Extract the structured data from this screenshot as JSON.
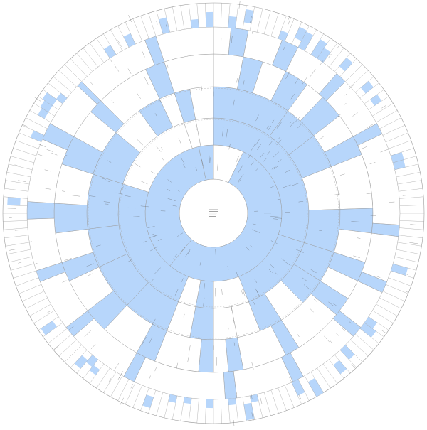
{
  "header": {
    "line1": "",
    "line2": ""
  },
  "center": {
    "title": "",
    "subtitle": ""
  },
  "colors": {
    "filled": "#b7d6fb",
    "empty": "#ffffff",
    "stroke": "#9a9a9a",
    "dashed": "#a8a8a8",
    "text": "#222222"
  },
  "rings": {
    "note": "",
    "level1": [
      {
        "start": 0,
        "end": 0.072,
        "filled": false
      },
      {
        "start": 0.072,
        "end": 0.61,
        "filled": true
      },
      {
        "start": 0.61,
        "end": 0.965,
        "filled": true
      },
      {
        "start": 0.965,
        "end": 1.0,
        "filled": true
      }
    ],
    "level2": [
      {
        "start": 0.0,
        "end": 0.3,
        "filled": true
      },
      {
        "start": 0.3,
        "end": 0.44,
        "filled": true
      },
      {
        "start": 0.44,
        "end": 0.5,
        "filled": false
      },
      {
        "start": 0.5,
        "end": 0.53,
        "filled": true
      },
      {
        "start": 0.53,
        "end": 0.56,
        "filled": false
      },
      {
        "start": 0.56,
        "end": 0.8,
        "filled": true
      },
      {
        "start": 0.8,
        "end": 0.95,
        "filled": false
      },
      {
        "start": 0.95,
        "end": 0.97,
        "filled": false
      },
      {
        "start": 0.97,
        "end": 1.0,
        "filled": false
      }
    ],
    "level3": [
      {
        "start": 0.0,
        "end": 0.1,
        "filled": true
      },
      {
        "start": 0.1,
        "end": 0.145,
        "filled": true
      },
      {
        "start": 0.145,
        "end": 0.19,
        "filled": true
      },
      {
        "start": 0.19,
        "end": 0.245,
        "filled": false
      },
      {
        "start": 0.245,
        "end": 0.3,
        "filled": true
      },
      {
        "start": 0.3,
        "end": 0.34,
        "filled": true
      },
      {
        "start": 0.34,
        "end": 0.375,
        "filled": true
      },
      {
        "start": 0.375,
        "end": 0.41,
        "filled": false
      },
      {
        "start": 0.41,
        "end": 0.44,
        "filled": true
      },
      {
        "start": 0.44,
        "end": 0.47,
        "filled": false
      },
      {
        "start": 0.47,
        "end": 0.5,
        "filled": false
      },
      {
        "start": 0.5,
        "end": 0.53,
        "filled": true
      },
      {
        "start": 0.53,
        "end": 0.56,
        "filled": false
      },
      {
        "start": 0.56,
        "end": 0.62,
        "filled": true
      },
      {
        "start": 0.62,
        "end": 0.68,
        "filled": true
      },
      {
        "start": 0.68,
        "end": 0.73,
        "filled": true
      },
      {
        "start": 0.73,
        "end": 0.8,
        "filled": true
      },
      {
        "start": 0.8,
        "end": 0.86,
        "filled": true
      },
      {
        "start": 0.86,
        "end": 0.9,
        "filled": false
      },
      {
        "start": 0.9,
        "end": 0.93,
        "filled": true
      },
      {
        "start": 0.93,
        "end": 0.95,
        "filled": false
      },
      {
        "start": 0.95,
        "end": 0.97,
        "filled": true
      },
      {
        "start": 0.97,
        "end": 1.0,
        "filled": false
      }
    ],
    "level4": [
      {
        "start": 0.0,
        "end": 0.03,
        "filled": false
      },
      {
        "start": 0.03,
        "end": 0.05,
        "filled": true
      },
      {
        "start": 0.05,
        "end": 0.075,
        "filled": false
      },
      {
        "start": 0.075,
        "end": 0.1,
        "filled": true
      },
      {
        "start": 0.1,
        "end": 0.12,
        "filled": false
      },
      {
        "start": 0.12,
        "end": 0.145,
        "filled": true
      },
      {
        "start": 0.145,
        "end": 0.17,
        "filled": false
      },
      {
        "start": 0.17,
        "end": 0.19,
        "filled": true
      },
      {
        "start": 0.19,
        "end": 0.245,
        "filled": false
      },
      {
        "start": 0.245,
        "end": 0.27,
        "filled": true
      },
      {
        "start": 0.27,
        "end": 0.3,
        "filled": false
      },
      {
        "start": 0.3,
        "end": 0.32,
        "filled": true
      },
      {
        "start": 0.32,
        "end": 0.34,
        "filled": false
      },
      {
        "start": 0.34,
        "end": 0.36,
        "filled": true
      },
      {
        "start": 0.36,
        "end": 0.41,
        "filled": false
      },
      {
        "start": 0.41,
        "end": 0.425,
        "filled": true
      },
      {
        "start": 0.425,
        "end": 0.47,
        "filled": false
      },
      {
        "start": 0.47,
        "end": 0.485,
        "filled": true
      },
      {
        "start": 0.485,
        "end": 0.5,
        "filled": false
      },
      {
        "start": 0.5,
        "end": 0.515,
        "filled": true
      },
      {
        "start": 0.515,
        "end": 0.56,
        "filled": false
      },
      {
        "start": 0.56,
        "end": 0.58,
        "filled": true
      },
      {
        "start": 0.58,
        "end": 0.62,
        "filled": false
      },
      {
        "start": 0.62,
        "end": 0.645,
        "filled": true
      },
      {
        "start": 0.645,
        "end": 0.68,
        "filled": false
      },
      {
        "start": 0.68,
        "end": 0.7,
        "filled": true
      },
      {
        "start": 0.7,
        "end": 0.73,
        "filled": false
      },
      {
        "start": 0.73,
        "end": 0.76,
        "filled": true
      },
      {
        "start": 0.76,
        "end": 0.8,
        "filled": false
      },
      {
        "start": 0.8,
        "end": 0.83,
        "filled": true
      },
      {
        "start": 0.83,
        "end": 0.86,
        "filled": false
      },
      {
        "start": 0.86,
        "end": 0.875,
        "filled": true
      },
      {
        "start": 0.875,
        "end": 0.93,
        "filled": false
      },
      {
        "start": 0.93,
        "end": 0.95,
        "filled": true
      },
      {
        "start": 0.95,
        "end": 1.0,
        "filled": false
      }
    ],
    "level5": [
      {
        "start": 0.0,
        "end": 0.015,
        "filled": false
      },
      {
        "start": 0.015,
        "end": 0.03,
        "filled": true
      },
      {
        "start": 0.03,
        "end": 0.06,
        "filled": false
      },
      {
        "start": 0.06,
        "end": 0.075,
        "filled": true
      },
      {
        "start": 0.075,
        "end": 0.115,
        "filled": false
      },
      {
        "start": 0.115,
        "end": 0.125,
        "filled": true
      },
      {
        "start": 0.125,
        "end": 0.17,
        "filled": false
      },
      {
        "start": 0.17,
        "end": 0.18,
        "filled": true
      },
      {
        "start": 0.18,
        "end": 0.26,
        "filled": false
      },
      {
        "start": 0.26,
        "end": 0.27,
        "filled": true
      },
      {
        "start": 0.27,
        "end": 0.31,
        "filled": false
      },
      {
        "start": 0.31,
        "end": 0.32,
        "filled": true
      },
      {
        "start": 0.32,
        "end": 0.355,
        "filled": false
      },
      {
        "start": 0.355,
        "end": 0.365,
        "filled": true
      },
      {
        "start": 0.365,
        "end": 0.42,
        "filled": false
      },
      {
        "start": 0.42,
        "end": 0.43,
        "filled": true
      },
      {
        "start": 0.43,
        "end": 0.48,
        "filled": false
      },
      {
        "start": 0.48,
        "end": 0.49,
        "filled": true
      },
      {
        "start": 0.49,
        "end": 0.57,
        "filled": false
      },
      {
        "start": 0.57,
        "end": 0.58,
        "filled": true
      },
      {
        "start": 0.58,
        "end": 0.635,
        "filled": false
      },
      {
        "start": 0.635,
        "end": 0.645,
        "filled": true
      },
      {
        "start": 0.645,
        "end": 0.69,
        "filled": false
      },
      {
        "start": 0.69,
        "end": 0.7,
        "filled": true
      },
      {
        "start": 0.7,
        "end": 0.745,
        "filled": false
      },
      {
        "start": 0.745,
        "end": 0.76,
        "filled": true
      },
      {
        "start": 0.76,
        "end": 0.815,
        "filled": false
      },
      {
        "start": 0.815,
        "end": 0.83,
        "filled": true
      },
      {
        "start": 0.83,
        "end": 0.87,
        "filled": false
      },
      {
        "start": 0.87,
        "end": 0.875,
        "filled": true
      },
      {
        "start": 0.875,
        "end": 0.94,
        "filled": false
      },
      {
        "start": 0.94,
        "end": 0.95,
        "filled": true
      },
      {
        "start": 0.95,
        "end": 1.0,
        "filled": false
      }
    ],
    "level6_divisions": 160
  },
  "labels": [
    {
      "text": "",
      "angle": 0.33,
      "level": 1
    },
    {
      "text": "",
      "angle": 0.8,
      "level": 1
    }
  ]
}
